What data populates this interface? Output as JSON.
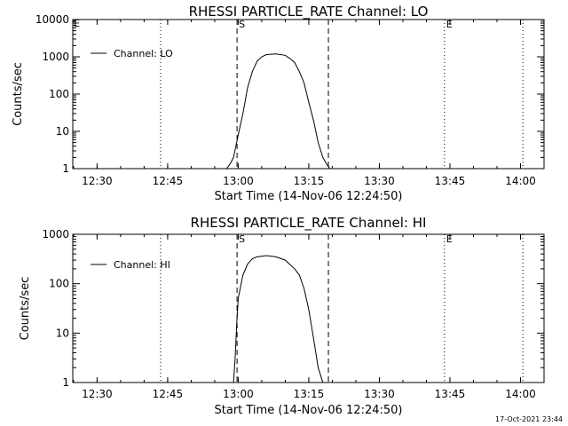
{
  "colors": {
    "background": "#ffffff",
    "foreground": "#000000"
  },
  "timestamp": "17-Oct-2021 23:44",
  "chart_data": [
    {
      "type": "line",
      "title": "RHESSI PARTICLE_RATE Channel: LO",
      "xlabel": "Start Time (14-Nov-06 12:24:50)",
      "ylabel": "Counts/sec",
      "xticks": [
        "12:30",
        "12:45",
        "13:00",
        "13:15",
        "13:30",
        "13:45",
        "14:00"
      ],
      "xlim": [
        "12:24:50",
        "14:05"
      ],
      "yscale": "log",
      "ylim": [
        1,
        10000
      ],
      "yticks": [
        "1",
        "10",
        "100",
        "1000",
        "10000"
      ],
      "legend": "top-left",
      "series": [
        {
          "name": "Channel: LO",
          "x": [
            "12:57:30",
            "12:58",
            "12:58:30",
            "12:59",
            "12:59:30",
            "13:00",
            "13:01",
            "13:02",
            "13:03",
            "13:04",
            "13:05",
            "13:06",
            "13:08",
            "13:10",
            "13:11",
            "13:12",
            "13:13",
            "13:14",
            "13:15",
            "13:16",
            "13:17",
            "13:18",
            "13:19",
            "13:19:30",
            "13:20"
          ],
          "values": [
            1,
            1.2,
            1.5,
            2,
            4,
            8,
            30,
            150,
            400,
            750,
            1000,
            1150,
            1200,
            1100,
            900,
            700,
            400,
            200,
            60,
            20,
            5,
            2,
            1.2,
            1,
            1
          ]
        }
      ],
      "markers": [
        {
          "label": "S",
          "x": "12:59:45",
          "style": "dashed"
        },
        {
          "label": "",
          "x": "13:19:10",
          "style": "dashed"
        },
        {
          "label": "E",
          "x": "13:43:50",
          "style": "dotted"
        },
        {
          "label": "",
          "x": "12:43:30",
          "style": "dotted"
        },
        {
          "label": "",
          "x": "14:00:30",
          "style": "dotted"
        }
      ],
      "corner_label": "E"
    },
    {
      "type": "line",
      "title": "RHESSI PARTICLE_RATE Channel: HI",
      "xlabel": "Start Time (14-Nov-06 12:24:50)",
      "ylabel": "Counts/sec",
      "xticks": [
        "12:30",
        "12:45",
        "13:00",
        "13:15",
        "13:30",
        "13:45",
        "14:00"
      ],
      "xlim": [
        "12:24:50",
        "14:05"
      ],
      "yscale": "log",
      "ylim": [
        1,
        1000
      ],
      "yticks": [
        "1",
        "10",
        "100",
        "1000"
      ],
      "legend": "top-left",
      "series": [
        {
          "name": "Channel: HI",
          "x": [
            "12:59",
            "12:59:20",
            "12:59:40",
            "13:00",
            "13:01",
            "13:02",
            "13:03",
            "13:04",
            "13:05",
            "13:06",
            "13:08",
            "13:10",
            "13:12",
            "13:13",
            "13:14",
            "13:15",
            "13:16",
            "13:17",
            "13:18"
          ],
          "values": [
            1,
            3,
            15,
            50,
            150,
            250,
            320,
            350,
            360,
            370,
            350,
            300,
            200,
            150,
            80,
            30,
            8,
            2,
            1
          ]
        }
      ],
      "markers": [
        {
          "label": "S",
          "x": "12:59:45",
          "style": "dashed"
        },
        {
          "label": "",
          "x": "13:19:10",
          "style": "dashed"
        },
        {
          "label": "E",
          "x": "13:43:50",
          "style": "dotted"
        },
        {
          "label": "",
          "x": "12:43:30",
          "style": "dotted"
        },
        {
          "label": "",
          "x": "14:00:30",
          "style": "dotted"
        }
      ],
      "corner_label": ""
    }
  ]
}
